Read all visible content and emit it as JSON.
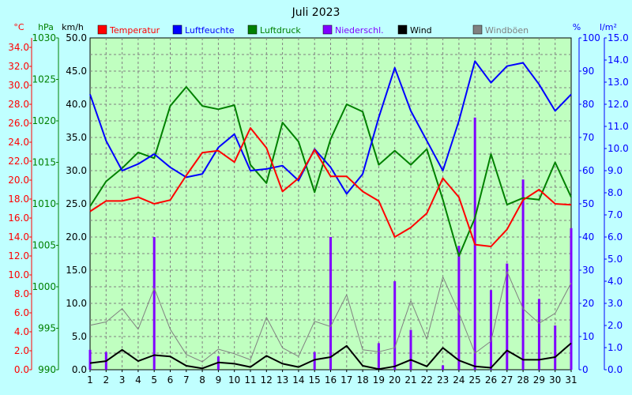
{
  "chart_data": {
    "type": "line",
    "title": "Juli 2023",
    "colors": {
      "background": "#c0ffff",
      "plot_background": "#c0ffc0",
      "grid": "#808080"
    },
    "x": {
      "categories": [
        "1",
        "2",
        "3",
        "4",
        "5",
        "6",
        "7",
        "8",
        "9",
        "10",
        "11",
        "12",
        "13",
        "14",
        "15",
        "16",
        "17",
        "18",
        "19",
        "20",
        "21",
        "22",
        "23",
        "24",
        "25",
        "26",
        "27",
        "28",
        "29",
        "30",
        "31"
      ]
    },
    "grid": true,
    "axes": {
      "temp": {
        "unit": "°C",
        "color": "#ff0000",
        "range": [
          0,
          35
        ],
        "ticks": [
          "0.0",
          "2.0",
          "4.0",
          "6.0",
          "8.0",
          "10.0",
          "12.0",
          "14.0",
          "16.0",
          "18.0",
          "20.0",
          "22.0",
          "24.0",
          "26.0",
          "28.0",
          "30.0",
          "32.0",
          "34.0"
        ],
        "tick_values": [
          0,
          2,
          4,
          6,
          8,
          10,
          12,
          14,
          16,
          18,
          20,
          22,
          24,
          26,
          28,
          30,
          32,
          34
        ]
      },
      "pressure": {
        "unit": "hPa",
        "color": "#008000",
        "range": [
          990,
          1030
        ],
        "ticks": [
          "990",
          "995",
          "1000",
          "1005",
          "1010",
          "1015",
          "1020",
          "1025",
          "1030"
        ],
        "tick_values": [
          990,
          995,
          1000,
          1005,
          1010,
          1015,
          1020,
          1025,
          1030
        ]
      },
      "wind": {
        "unit": "km/h",
        "color": "#000000",
        "range": [
          0,
          50
        ],
        "ticks": [
          "0.0",
          "5.0",
          "10.0",
          "15.0",
          "20.0",
          "25.0",
          "30.0",
          "35.0",
          "40.0",
          "45.0",
          "50.0"
        ],
        "tick_values": [
          0,
          5,
          10,
          15,
          20,
          25,
          30,
          35,
          40,
          45,
          50
        ]
      },
      "humidity": {
        "unit": "%",
        "color": "#0000ff",
        "range": [
          0,
          100
        ],
        "ticks": [
          "0",
          "10",
          "20",
          "30",
          "40",
          "50",
          "60",
          "70",
          "80",
          "90",
          "100"
        ],
        "tick_values": [
          0,
          10,
          20,
          30,
          40,
          50,
          60,
          70,
          80,
          90,
          100
        ]
      },
      "rain": {
        "unit": "l/m²",
        "color": "#0000ff",
        "range": [
          0,
          15
        ],
        "ticks": [
          "0.0",
          "1.0",
          "2.0",
          "3.0",
          "4.0",
          "5.0",
          "6.0",
          "7.0",
          "8.0",
          "9.0",
          "10.0",
          "11.0",
          "12.0",
          "13.0",
          "14.0",
          "15.0"
        ],
        "tick_values": [
          0,
          1,
          2,
          3,
          4,
          5,
          6,
          7,
          8,
          9,
          10,
          11,
          12,
          13,
          14,
          15
        ]
      }
    },
    "series": [
      {
        "name": "Temperatur",
        "color": "#ff0000",
        "axis": "temp",
        "kind": "line",
        "values": [
          16.7,
          17.8,
          17.8,
          18.2,
          17.5,
          17.9,
          20.5,
          22.9,
          23.1,
          21.9,
          25.5,
          23.4,
          18.8,
          20.2,
          23.2,
          20.4,
          20.4,
          18.8,
          17.8,
          14.0,
          15.0,
          16.5,
          20.2,
          18.2,
          13.2,
          13.0,
          14.8,
          17.9,
          19.0,
          17.5,
          17.4
        ]
      },
      {
        "name": "Luftfeuchte",
        "color": "#0000ff",
        "axis": "humidity",
        "kind": "line",
        "values": [
          83,
          69,
          60,
          62,
          65,
          61,
          58,
          59,
          67,
          71,
          60,
          60.5,
          61.5,
          57,
          66.5,
          61,
          53,
          59,
          76,
          91,
          78,
          69,
          60,
          75,
          93,
          86.5,
          91.5,
          92.5,
          86,
          78,
          83
        ]
      },
      {
        "name": "Luftdruck",
        "color": "#008000",
        "axis": "pressure",
        "kind": "line",
        "values": [
          1009.7,
          1012.7,
          1014.3,
          1016.2,
          1015.5,
          1021.8,
          1024.1,
          1021.8,
          1021.4,
          1021.9,
          1014.7,
          1012.5,
          1019.8,
          1017.5,
          1011.4,
          1017.8,
          1022.0,
          1021.1,
          1014.7,
          1016.4,
          1014.7,
          1016.6,
          1010.5,
          1003.7,
          1008.3,
          1016.0,
          1009.9,
          1010.7,
          1010.5,
          1015.0,
          1010.8
        ]
      },
      {
        "name": "Niederschl.",
        "color": "#8000ff",
        "axis": "rain",
        "kind": "bar",
        "values": [
          0.9,
          0.8,
          0,
          0,
          6.0,
          0,
          0,
          0,
          0.6,
          0,
          0,
          0,
          0,
          0,
          0.8,
          6.0,
          0,
          0,
          1.2,
          4.0,
          1.8,
          0,
          0.2,
          5.6,
          11.4,
          3.6,
          4.8,
          8.6,
          3.2,
          2.0,
          6.4
        ]
      },
      {
        "name": "Wind",
        "color": "#000000",
        "axis": "wind",
        "kind": "line",
        "values": [
          1.0,
          1.3,
          3.0,
          1.3,
          2.2,
          2.0,
          0.6,
          0.2,
          1.1,
          0.9,
          0.4,
          2.1,
          0.9,
          0.4,
          1.5,
          1.9,
          3.6,
          0.6,
          0.1,
          0.5,
          1.5,
          0.5,
          3.3,
          1.4,
          0.5,
          0.3,
          2.9,
          1.5,
          1.5,
          1.9,
          4.0
        ]
      },
      {
        "name": "Windböen",
        "color": "#808080",
        "axis": "wind",
        "kind": "line",
        "values": [
          6.7,
          7.2,
          9.2,
          6.1,
          12.3,
          6.1,
          2.3,
          1.2,
          3.1,
          2.4,
          1.5,
          7.9,
          3.3,
          2.0,
          7.3,
          6.5,
          11.3,
          3.0,
          2.7,
          3.3,
          10.4,
          4.6,
          14.0,
          8.6,
          2.5,
          4.3,
          14.8,
          9.2,
          7.0,
          8.5,
          13.1
        ]
      }
    ]
  }
}
